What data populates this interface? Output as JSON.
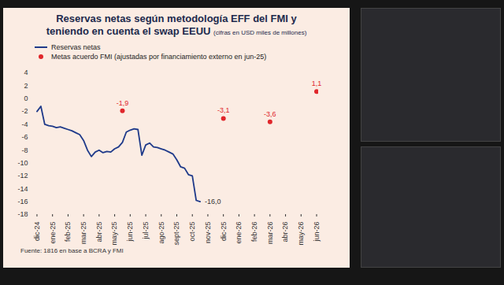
{
  "chart_data": {
    "type": "line",
    "title": "Reservas netas según metodología EFF del FMI  y teniendo en cuenta el swap EEUU",
    "subtitle": "(cifras en USD miles de millones)",
    "caption": "Fuente: 1816 en base a BCRA y FMI",
    "categories": [
      "dic-24",
      null,
      null,
      null,
      "ene-25",
      null,
      null,
      null,
      "feb-25",
      null,
      null,
      null,
      "mar-25",
      null,
      null,
      null,
      "abr-25",
      null,
      null,
      null,
      "may-25",
      null,
      null,
      null,
      "jun-25",
      null,
      null,
      null,
      "jul-25",
      null,
      null,
      null,
      "ago-25",
      null,
      null,
      null,
      "sept-25",
      null,
      null,
      null,
      "oct-25",
      null,
      null,
      null,
      "nov-25",
      null,
      null,
      null,
      "dic-25",
      null,
      null,
      null,
      "ene-26",
      null,
      null,
      null,
      "feb-26",
      null,
      null,
      null,
      "mar-26",
      null,
      null,
      null,
      "abr-26",
      null,
      null,
      null,
      "may-26",
      null,
      null,
      null,
      "jun-26"
    ],
    "series": [
      {
        "name": "Reservas netas",
        "type": "line",
        "color": "#1f3a8a",
        "values": [
          -2.0,
          -1.2,
          -4.0,
          -4.2,
          -4.3,
          -4.5,
          -4.4,
          -4.6,
          -4.8,
          -5.0,
          -5.3,
          -5.6,
          -6.5,
          -8.0,
          -9.0,
          -8.3,
          -8.0,
          -8.4,
          -8.2,
          -8.3,
          -7.8,
          -7.5,
          -6.8,
          -5.2,
          -4.9,
          -4.7,
          -4.8,
          -8.8,
          -7.2,
          -6.9,
          -7.5,
          -7.6,
          -7.8,
          -8.0,
          -8.3,
          -8.6,
          -9.5,
          -10.6,
          -10.8,
          -11.8,
          -12.0,
          -15.8,
          -16.0,
          null,
          null,
          null,
          null,
          null,
          null,
          null,
          null,
          null,
          null,
          null,
          null,
          null,
          null,
          null,
          null,
          null,
          null,
          null,
          null,
          null,
          null,
          null,
          null,
          null,
          null,
          null,
          null,
          null,
          null
        ],
        "value_labels": [
          null,
          null,
          null,
          null,
          null,
          null,
          null,
          null,
          null,
          null,
          null,
          null,
          null,
          null,
          null,
          null,
          null,
          null,
          null,
          null,
          null,
          null,
          null,
          null,
          null,
          null,
          null,
          null,
          null,
          null,
          null,
          null,
          null,
          null,
          null,
          null,
          null,
          null,
          null,
          null,
          null,
          null,
          "-16,0",
          null,
          null,
          null,
          null,
          null,
          null,
          null,
          null,
          null,
          null,
          null,
          null,
          null,
          null,
          null,
          null,
          null,
          null,
          null,
          null,
          null,
          null,
          null,
          null,
          null,
          null,
          null,
          null,
          null,
          null
        ]
      },
      {
        "name": "Metas acuerdo FMI (ajustadas por financiamiento externo en jun-25)",
        "type": "scatter",
        "marker": "circle",
        "color": "#e0262b",
        "values": [
          null,
          null,
          null,
          null,
          null,
          null,
          null,
          null,
          null,
          null,
          null,
          null,
          null,
          null,
          null,
          null,
          null,
          null,
          null,
          null,
          null,
          null,
          -1.9,
          null,
          null,
          null,
          null,
          null,
          null,
          null,
          null,
          null,
          null,
          null,
          null,
          null,
          null,
          null,
          null,
          null,
          null,
          null,
          null,
          null,
          null,
          null,
          null,
          null,
          -3.1,
          null,
          null,
          null,
          null,
          null,
          null,
          null,
          null,
          null,
          null,
          null,
          -3.6,
          null,
          null,
          null,
          null,
          null,
          null,
          null,
          null,
          null,
          null,
          null,
          1.1
        ],
        "value_labels": [
          null,
          null,
          null,
          null,
          null,
          null,
          null,
          null,
          null,
          null,
          null,
          null,
          null,
          null,
          null,
          null,
          null,
          null,
          null,
          null,
          null,
          null,
          "-1,9",
          null,
          null,
          null,
          null,
          null,
          null,
          null,
          null,
          null,
          null,
          null,
          null,
          null,
          null,
          null,
          null,
          null,
          null,
          null,
          null,
          null,
          null,
          null,
          null,
          null,
          "-3,1",
          null,
          null,
          null,
          null,
          null,
          null,
          null,
          null,
          null,
          null,
          null,
          "-3,6",
          null,
          null,
          null,
          null,
          null,
          null,
          null,
          null,
          null,
          null,
          null,
          "1,1"
        ]
      }
    ],
    "ylim": [
      -18,
      4
    ],
    "yticks": [
      -18,
      -16,
      -14,
      -12,
      -10,
      -8,
      -6,
      -4,
      -2,
      0,
      2,
      4
    ],
    "grid": false,
    "legend": "top-left",
    "data_labels": true
  }
}
